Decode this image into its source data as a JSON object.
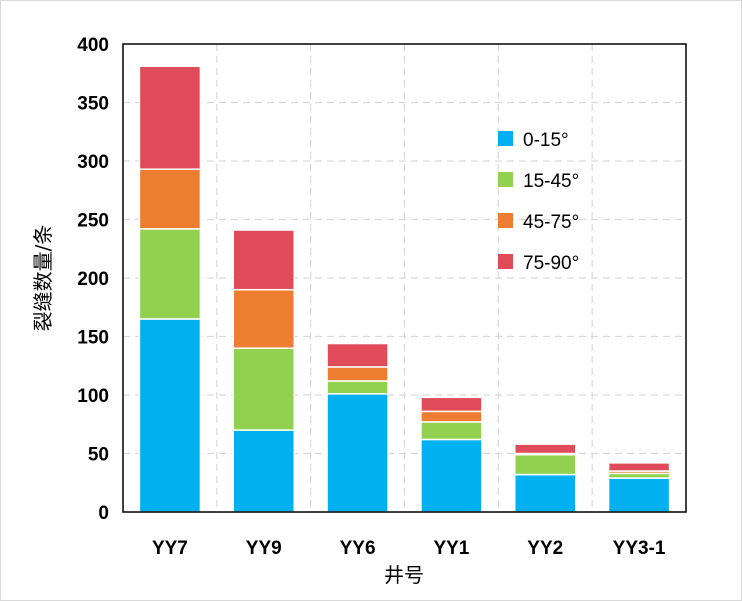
{
  "chart_data": {
    "type": "bar",
    "stacked": true,
    "title": "",
    "xlabel": "井号",
    "ylabel": "裂缝数量/条",
    "ylim": [
      0,
      400
    ],
    "yticks": [
      0,
      50,
      100,
      150,
      200,
      250,
      300,
      350,
      400
    ],
    "grid": true,
    "legend_position": "right",
    "categories": [
      "YY7",
      "YY9",
      "YY6",
      "YY1",
      "YY2",
      "YY3-1"
    ],
    "series": [
      {
        "name": "0-15°",
        "color": "#00b0f0",
        "values": [
          165,
          70,
          101,
          62,
          32,
          29
        ]
      },
      {
        "name": "15-45°",
        "color": "#92d050",
        "values": [
          77,
          70,
          11,
          15,
          17,
          4
        ]
      },
      {
        "name": "45-75°",
        "color": "#ed7d31",
        "values": [
          51,
          50,
          12,
          9,
          1,
          2
        ]
      },
      {
        "name": "75-90°",
        "color": "#e04b5a",
        "values": [
          88,
          51,
          20,
          12,
          8,
          7
        ]
      }
    ]
  }
}
